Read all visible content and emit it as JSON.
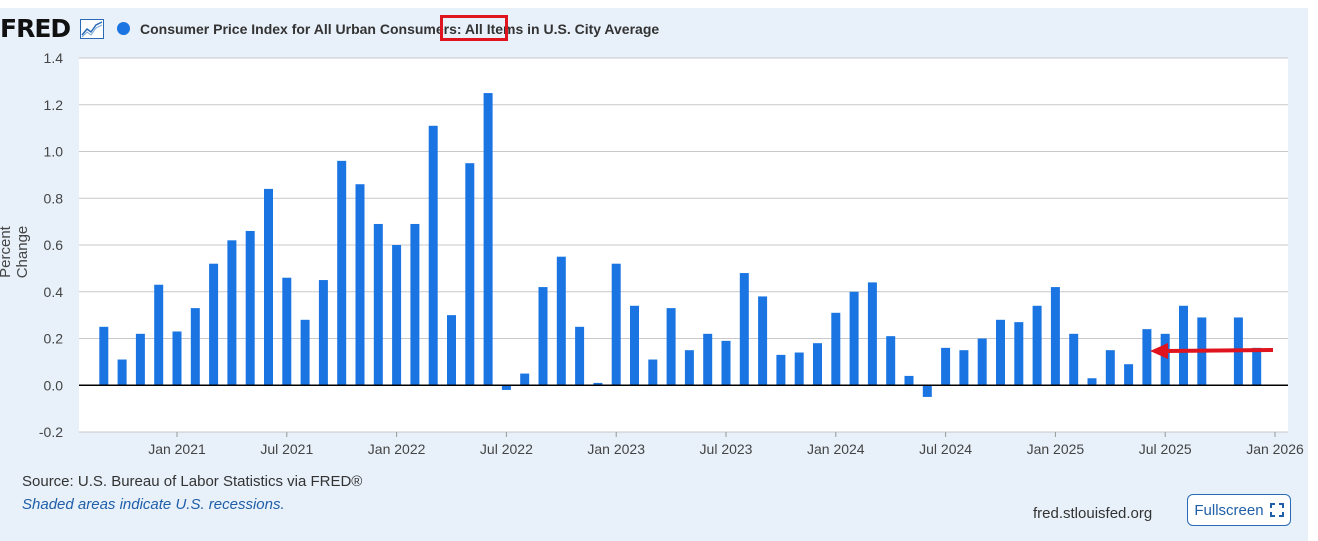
{
  "header": {
    "logo_text": "FRED",
    "title": "Consumer Price Index for All Urban Consumers: All Items in U.S. City Average",
    "highlight_word": "All Items",
    "series_color": "#1a75e2"
  },
  "annotation": {
    "box_color": "#e0141e",
    "arrow_color": "#e0141e"
  },
  "footer": {
    "source": "Source: U.S. Bureau of Labor Statistics via FRED®",
    "shaded_note": "Shaded areas indicate U.S. recessions.",
    "site": "fred.stlouisfed.org",
    "fullscreen_label": "Fullscreen",
    "fullscreen_icon": "expand-icon"
  },
  "chart_data": {
    "type": "bar",
    "title": "Consumer Price Index for All Urban Consumers: All Items in U.S. City Average",
    "ylabel": "Percent Change",
    "ylim": [
      -0.2,
      1.4
    ],
    "yticks": [
      "1.4",
      "1.2",
      "1.0",
      "0.8",
      "0.6",
      "0.4",
      "0.2",
      "0.0",
      "-0.2"
    ],
    "grid": true,
    "xticks": [
      "Jan 2021",
      "Jul 2021",
      "Jan 2022",
      "Jul 2022",
      "Jan 2023",
      "Jul 2023",
      "Jan 2024",
      "Jul 2024",
      "Jan 2025",
      "Jul 2025",
      "Jan 2026"
    ],
    "categories": [
      "2020-09",
      "2020-10",
      "2020-11",
      "2020-12",
      "2021-01",
      "2021-02",
      "2021-03",
      "2021-04",
      "2021-05",
      "2021-06",
      "2021-07",
      "2021-08",
      "2021-09",
      "2021-10",
      "2021-11",
      "2021-12",
      "2022-01",
      "2022-02",
      "2022-03",
      "2022-04",
      "2022-05",
      "2022-06",
      "2022-07",
      "2022-08",
      "2022-09",
      "2022-10",
      "2022-11",
      "2022-12",
      "2023-01",
      "2023-02",
      "2023-03",
      "2023-04",
      "2023-05",
      "2023-06",
      "2023-07",
      "2023-08",
      "2023-09",
      "2023-10",
      "2023-11",
      "2023-12",
      "2024-01",
      "2024-02",
      "2024-03",
      "2024-04",
      "2024-05",
      "2024-06",
      "2024-07",
      "2024-08",
      "2024-09",
      "2024-10",
      "2024-11",
      "2024-12",
      "2025-01",
      "2025-02",
      "2025-03",
      "2025-04",
      "2025-05",
      "2025-06",
      "2025-07",
      "2025-08",
      "2025-09",
      "2025-10",
      "2025-11",
      "2025-12"
    ],
    "series": [
      {
        "values": [
          0.25,
          0.11,
          0.22,
          0.43,
          0.23,
          0.33,
          0.52,
          0.62,
          0.66,
          0.84,
          0.46,
          0.28,
          0.45,
          0.96,
          0.86,
          0.69,
          0.6,
          0.69,
          1.11,
          0.3,
          0.95,
          1.25,
          -0.02,
          0.05,
          0.42,
          0.55,
          0.25,
          0.01,
          0.52,
          0.34,
          0.11,
          0.33,
          0.15,
          0.22,
          0.19,
          0.48,
          0.38,
          0.13,
          0.14,
          0.18,
          0.31,
          0.4,
          0.44,
          0.21,
          0.04,
          -0.05,
          0.16,
          0.15,
          0.2,
          0.28,
          0.27,
          0.34,
          0.42,
          0.22,
          0.03,
          0.15,
          0.09,
          0.24,
          0.22,
          0.34,
          0.29,
          null,
          0.29,
          0.16
        ]
      }
    ]
  }
}
